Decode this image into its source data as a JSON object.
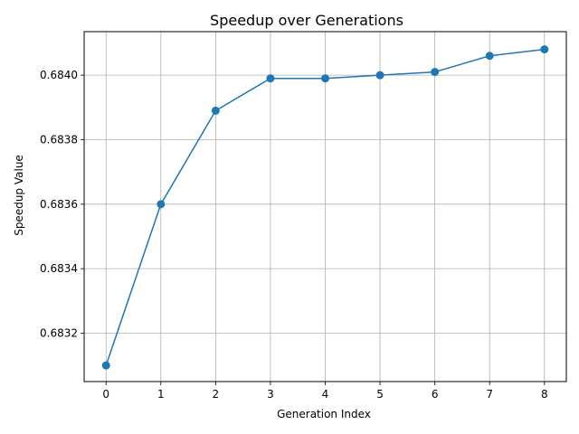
{
  "chart_data": {
    "type": "line",
    "title": "Speedup over Generations",
    "xlabel": "Generation Index",
    "ylabel": "Speedup Value",
    "x": [
      0,
      1,
      2,
      3,
      4,
      5,
      6,
      7,
      8
    ],
    "series": [
      {
        "values": [
          0.6831,
          0.6836,
          0.68389,
          0.68399,
          0.68399,
          0.684,
          0.68401,
          0.68406,
          0.68408
        ]
      }
    ],
    "xlim": [
      -0.4,
      8.4
    ],
    "ylim": [
      0.68305,
      0.684135
    ],
    "xticks": [
      0,
      1,
      2,
      3,
      4,
      5,
      6,
      7,
      8
    ],
    "yticks": [
      0.6832,
      0.6834,
      0.6836,
      0.6838,
      0.684
    ],
    "ytick_labels": [
      "0.6832",
      "0.6834",
      "0.6836",
      "0.6838",
      "0.6840"
    ],
    "grid": true,
    "line_color": "#1f77b4"
  }
}
